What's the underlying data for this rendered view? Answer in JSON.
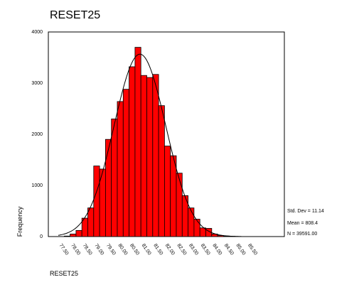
{
  "chart_data": {
    "type": "bar",
    "title": "RESET25",
    "xlabel": "RESET25",
    "ylabel": "Frequency",
    "ylim": [
      0,
      4000
    ],
    "yticks": [
      "0",
      "1000",
      "2000",
      "3000",
      "4000"
    ],
    "xticks": [
      "77.50",
      "78.00",
      "78.50",
      "79.00",
      "79.50",
      "80.00",
      "80.50",
      "81.00",
      "81.50",
      "82.00",
      "82.50",
      "83.00",
      "83.50",
      "84.00",
      "84.50",
      "85.00",
      "85.50"
    ],
    "values": [
      0,
      10,
      50,
      120,
      360,
      560,
      1380,
      1320,
      1900,
      2300,
      2640,
      2880,
      3320,
      3700,
      3150,
      3110,
      3170,
      2560,
      1770,
      1580,
      1240,
      800,
      560,
      340,
      170,
      160,
      50,
      20,
      10,
      5,
      2
    ],
    "normal_curve": true,
    "grid": false,
    "legend": "none",
    "stats": {
      "std_dev": "Std. Dev = 11.14",
      "mean": "Mean = 808.4",
      "n": "N = 39591.00"
    },
    "colors": {
      "bar_fill": "#ff0000",
      "bar_stroke": "#000000"
    }
  }
}
